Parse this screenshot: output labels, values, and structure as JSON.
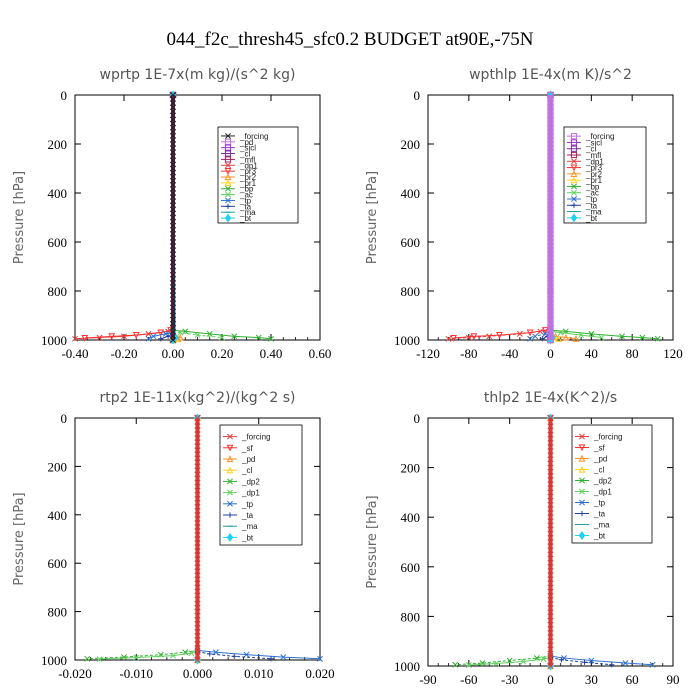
{
  "figure": {
    "title": "044_f2c_thresh45_sfc0.2  BUDGET at90E,-75N"
  },
  "chart_data": [
    {
      "type": "line",
      "title": "wprtp  1E-7x(m kg)/(s^2 kg)",
      "ylabel": "Pressure [hPa]",
      "xlim": [
        -0.4,
        0.6
      ],
      "ylim": [
        1000,
        0
      ],
      "xticks": [
        "-0.40",
        "-0.20",
        "0.00",
        "0.20",
        "0.40",
        "0.60"
      ],
      "yticks": [
        "0",
        "200",
        "400",
        "600",
        "800",
        "1000"
      ],
      "grid": false,
      "legend_position": "top-right",
      "series": [
        {
          "name": "_forcing",
          "color": "#222222",
          "marker": "x",
          "x": [
            0,
            0,
            0
          ],
          "y": [
            0,
            800,
            1000
          ]
        },
        {
          "name": "_pd",
          "color": "#c070e0",
          "marker": "s",
          "x": [
            0,
            0
          ],
          "y": [
            0,
            1000
          ]
        },
        {
          "name": "_sicl",
          "color": "#9b30c8",
          "marker": "s",
          "x": [
            0,
            0
          ],
          "y": [
            0,
            1000
          ]
        },
        {
          "name": "_cl",
          "color": "#7a2aa0",
          "marker": "s",
          "x": [
            0,
            0
          ],
          "y": [
            0,
            1000
          ]
        },
        {
          "name": "_mfl",
          "color": "#a0205a",
          "marker": "s",
          "x": [
            0,
            0
          ],
          "y": [
            0,
            1000
          ]
        },
        {
          "name": "_dp1",
          "color": "#e04040",
          "marker": "x",
          "x": [
            0,
            -0.02,
            -0.1,
            -0.2,
            -0.3,
            -0.4
          ],
          "y": [
            960,
            965,
            975,
            985,
            990,
            995
          ]
        },
        {
          "name": "_pr3",
          "color": "#ff3030",
          "marker": "v",
          "x": [
            0,
            -0.01,
            -0.05,
            -0.15,
            -0.25,
            -0.36
          ],
          "y": [
            950,
            960,
            970,
            980,
            985,
            992
          ]
        },
        {
          "name": "_pr2",
          "color": "#ff9020",
          "marker": "^",
          "x": [
            0,
            0.01,
            0.03,
            0.02
          ],
          "y": [
            980,
            985,
            990,
            995
          ]
        },
        {
          "name": "_pr1",
          "color": "#ffd020",
          "marker": "^",
          "x": [
            0,
            0.005,
            0.01,
            0
          ],
          "y": [
            985,
            990,
            995,
            1000
          ]
        },
        {
          "name": "_bp",
          "color": "#30b030",
          "marker": "x",
          "x": [
            0,
            0.05,
            0.15,
            0.25,
            0.35,
            0.4
          ],
          "y": [
            960,
            965,
            975,
            985,
            990,
            995
          ]
        },
        {
          "name": "_ac",
          "color": "#60d060",
          "marker": "x",
          "x": [
            0,
            0.03,
            0.1,
            0.2
          ],
          "y": [
            965,
            970,
            980,
            990
          ]
        },
        {
          "name": "_tp",
          "color": "#3070d0",
          "marker": "x",
          "x": [
            0,
            -0.03,
            -0.08,
            -0.1
          ],
          "y": [
            970,
            975,
            985,
            995
          ]
        },
        {
          "name": "_ta",
          "color": "#2040a0",
          "marker": "+",
          "x": [
            0,
            -0.02,
            -0.05
          ],
          "y": [
            975,
            985,
            995
          ]
        },
        {
          "name": "_ma",
          "color": "#20a0a0",
          "marker": "-",
          "x": [
            0,
            0
          ],
          "y": [
            0,
            1000
          ]
        },
        {
          "name": "_bt",
          "color": "#20d0f0",
          "marker": "d",
          "x": [
            0,
            0.01,
            0
          ],
          "y": [
            0,
            990,
            1000
          ]
        }
      ]
    },
    {
      "type": "line",
      "title": "wpthlp  1E-4x(m K)/s^2",
      "ylabel": "Pressure [hPa]",
      "xlim": [
        -120,
        120
      ],
      "ylim": [
        1000,
        0
      ],
      "xticks": [
        "-120",
        "-80",
        "-40",
        "0",
        "40",
        "80",
        "120"
      ],
      "yticks": [
        "0",
        "200",
        "400",
        "600",
        "800",
        "1000"
      ],
      "grid": false,
      "legend_position": "top-right",
      "series": [
        {
          "name": "_forcing",
          "color": "#c070e0",
          "marker": "s",
          "x": [
            0,
            0,
            0
          ],
          "y": [
            0,
            800,
            1000
          ]
        },
        {
          "name": "_sicl",
          "color": "#9b30c8",
          "marker": "s",
          "x": [
            0,
            0
          ],
          "y": [
            0,
            1000
          ]
        },
        {
          "name": "_cl",
          "color": "#7a2aa0",
          "marker": "s",
          "x": [
            0,
            0
          ],
          "y": [
            0,
            1000
          ]
        },
        {
          "name": "_mfl",
          "color": "#a0205a",
          "marker": "s",
          "x": [
            0,
            0
          ],
          "y": [
            0,
            1000
          ]
        },
        {
          "name": "_dp1",
          "color": "#e04040",
          "marker": "x",
          "x": [
            0,
            -10,
            -30,
            -60,
            -80,
            -100
          ],
          "y": [
            960,
            965,
            975,
            985,
            990,
            995
          ]
        },
        {
          "name": "_pr3",
          "color": "#ff3030",
          "marker": "v",
          "x": [
            0,
            -5,
            -20,
            -50,
            -75,
            -95
          ],
          "y": [
            950,
            960,
            970,
            980,
            985,
            992
          ]
        },
        {
          "name": "_pr2",
          "color": "#ff9020",
          "marker": "^",
          "x": [
            0,
            5,
            15,
            25
          ],
          "y": [
            980,
            985,
            990,
            995
          ]
        },
        {
          "name": "_pr1",
          "color": "#ffd020",
          "marker": "^",
          "x": [
            0,
            3,
            8,
            0
          ],
          "y": [
            985,
            990,
            995,
            1000
          ]
        },
        {
          "name": "_bp",
          "color": "#30b030",
          "marker": "x",
          "x": [
            0,
            15,
            40,
            70,
            90,
            105
          ],
          "y": [
            960,
            965,
            975,
            985,
            990,
            995
          ]
        },
        {
          "name": "_ac",
          "color": "#60d060",
          "marker": "x",
          "x": [
            0,
            10,
            30,
            50
          ],
          "y": [
            965,
            970,
            980,
            990
          ]
        },
        {
          "name": "_tp",
          "color": "#3070d0",
          "marker": "x",
          "x": [
            0,
            -5,
            -15,
            -20
          ],
          "y": [
            970,
            975,
            985,
            995
          ]
        },
        {
          "name": "_ta",
          "color": "#2040a0",
          "marker": "+",
          "x": [
            0,
            -3,
            -8
          ],
          "y": [
            975,
            985,
            995
          ]
        },
        {
          "name": "_ma",
          "color": "#20a0a0",
          "marker": "-",
          "x": [
            0,
            0
          ],
          "y": [
            0,
            1000
          ]
        },
        {
          "name": "_bt",
          "color": "#20d0f0",
          "marker": "d",
          "x": [
            0,
            2,
            0
          ],
          "y": [
            0,
            990,
            1000
          ]
        }
      ]
    },
    {
      "type": "line",
      "title": "rtp2  1E-11x(kg^2)/(kg^2 s)",
      "ylabel": "Pressure [hPa]",
      "xlim": [
        -0.02,
        0.02
      ],
      "ylim": [
        1000,
        0
      ],
      "xticks": [
        "-0.020",
        "-0.010",
        "0.000",
        "0.010",
        "0.020"
      ],
      "yticks": [
        "0",
        "200",
        "400",
        "600",
        "800",
        "1000"
      ],
      "grid": false,
      "legend_position": "top-right",
      "series": [
        {
          "name": "_forcing",
          "color": "#e04040",
          "marker": "x",
          "x": [
            0,
            0,
            0
          ],
          "y": [
            0,
            800,
            1000
          ]
        },
        {
          "name": "_sf",
          "color": "#ff3030",
          "marker": "v",
          "x": [
            0,
            0
          ],
          "y": [
            0,
            1000
          ]
        },
        {
          "name": "_pd",
          "color": "#ff9020",
          "marker": "^",
          "x": [
            0,
            0
          ],
          "y": [
            0,
            1000
          ]
        },
        {
          "name": "_cl",
          "color": "#ffd020",
          "marker": "^",
          "x": [
            0,
            0
          ],
          "y": [
            0,
            1000
          ]
        },
        {
          "name": "_dp2",
          "color": "#30b030",
          "marker": "x",
          "x": [
            0,
            -0.002,
            -0.006,
            -0.012,
            -0.018
          ],
          "y": [
            960,
            968,
            978,
            988,
            995
          ]
        },
        {
          "name": "_dp1",
          "color": "#60d060",
          "marker": "x",
          "x": [
            0,
            -0.001,
            -0.004,
            -0.01,
            -0.016
          ],
          "y": [
            965,
            972,
            982,
            990,
            996
          ]
        },
        {
          "name": "_tp",
          "color": "#3070d0",
          "marker": "x",
          "x": [
            0,
            0.003,
            0.008,
            0.014,
            0.02
          ],
          "y": [
            960,
            968,
            978,
            988,
            995
          ]
        },
        {
          "name": "_ta",
          "color": "#2040a0",
          "marker": "+",
          "x": [
            0,
            0.002,
            0.006,
            0.012
          ],
          "y": [
            965,
            975,
            985,
            995
          ]
        },
        {
          "name": "_ma",
          "color": "#20a0a0",
          "marker": "-",
          "x": [
            0,
            0
          ],
          "y": [
            0,
            1000
          ]
        },
        {
          "name": "_bt",
          "color": "#20d0f0",
          "marker": "d",
          "x": [
            0,
            0,
            0
          ],
          "y": [
            0,
            990,
            1000
          ]
        }
      ]
    },
    {
      "type": "line",
      "title": "thlp2  1E-4x(K^2)/s",
      "ylabel": "Pressure [hPa]",
      "xlim": [
        -90,
        90
      ],
      "ylim": [
        1000,
        0
      ],
      "xticks": [
        "-90",
        "-60",
        "-30",
        "0",
        "30",
        "60",
        "90"
      ],
      "yticks": [
        "0",
        "200",
        "400",
        "600",
        "800",
        "1000"
      ],
      "grid": false,
      "legend_position": "top-right",
      "series": [
        {
          "name": "_forcing",
          "color": "#e04040",
          "marker": "x",
          "x": [
            0,
            0,
            0
          ],
          "y": [
            0,
            800,
            1000
          ]
        },
        {
          "name": "_sf",
          "color": "#ff3030",
          "marker": "v",
          "x": [
            0,
            0
          ],
          "y": [
            0,
            1000
          ]
        },
        {
          "name": "_pd",
          "color": "#ff9020",
          "marker": "^",
          "x": [
            0,
            0
          ],
          "y": [
            0,
            1000
          ]
        },
        {
          "name": "_cl",
          "color": "#ffd020",
          "marker": "^",
          "x": [
            0,
            0
          ],
          "y": [
            0,
            1000
          ]
        },
        {
          "name": "_dp2",
          "color": "#30b030",
          "marker": "x",
          "x": [
            0,
            -10,
            -30,
            -50,
            -70
          ],
          "y": [
            960,
            968,
            978,
            988,
            995
          ]
        },
        {
          "name": "_dp1",
          "color": "#60d060",
          "marker": "x",
          "x": [
            0,
            -5,
            -20,
            -40,
            -60
          ],
          "y": [
            965,
            972,
            982,
            990,
            996
          ]
        },
        {
          "name": "_tp",
          "color": "#3070d0",
          "marker": "x",
          "x": [
            0,
            10,
            30,
            55,
            75
          ],
          "y": [
            960,
            968,
            978,
            988,
            995
          ]
        },
        {
          "name": "_ta",
          "color": "#2040a0",
          "marker": "+",
          "x": [
            0,
            8,
            25,
            45
          ],
          "y": [
            965,
            975,
            985,
            995
          ]
        },
        {
          "name": "_ma",
          "color": "#20a0a0",
          "marker": "-",
          "x": [
            0,
            0
          ],
          "y": [
            0,
            1000
          ]
        },
        {
          "name": "_bt",
          "color": "#20d0f0",
          "marker": "d",
          "x": [
            0,
            0,
            0
          ],
          "y": [
            0,
            990,
            1000
          ]
        }
      ]
    }
  ]
}
